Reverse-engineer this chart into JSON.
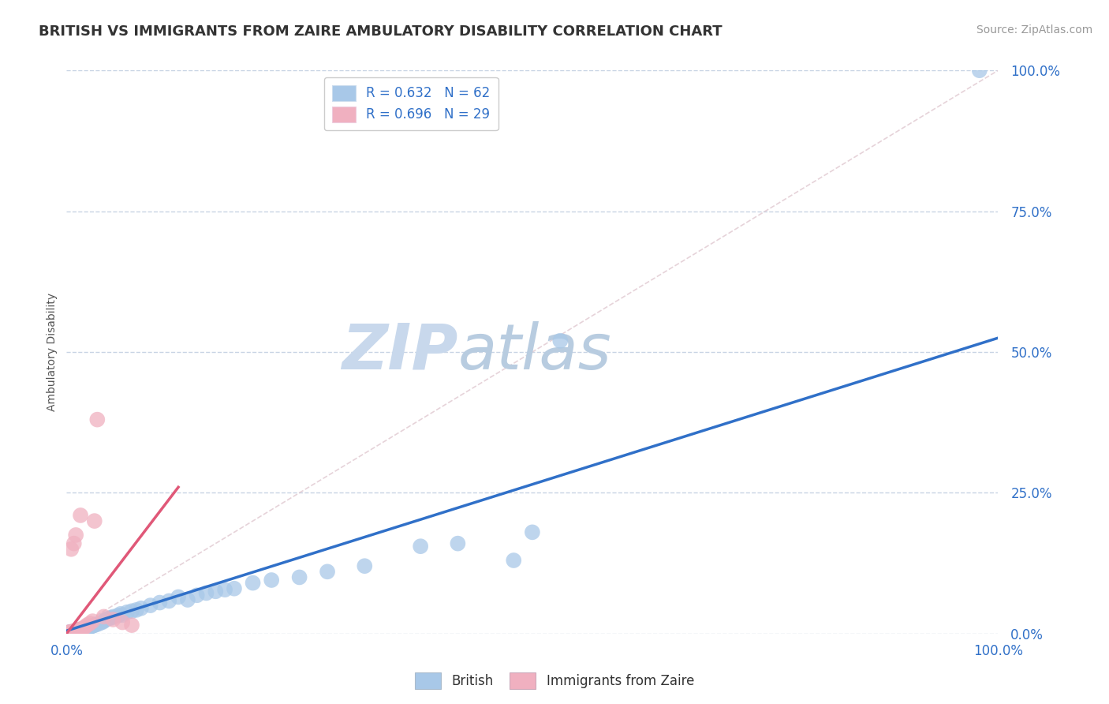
{
  "title": "BRITISH VS IMMIGRANTS FROM ZAIRE AMBULATORY DISABILITY CORRELATION CHART",
  "source": "Source: ZipAtlas.com",
  "ylabel": "Ambulatory Disability",
  "blue_R": 0.632,
  "blue_N": 62,
  "pink_R": 0.696,
  "pink_N": 29,
  "blue_color": "#a8c8e8",
  "pink_color": "#f0b0c0",
  "blue_line_color": "#3070c8",
  "pink_line_color": "#e05878",
  "blue_scatter": [
    [
      0.001,
      0.001
    ],
    [
      0.002,
      0.002
    ],
    [
      0.003,
      0.001
    ],
    [
      0.004,
      0.003
    ],
    [
      0.005,
      0.002
    ],
    [
      0.006,
      0.003
    ],
    [
      0.007,
      0.002
    ],
    [
      0.008,
      0.004
    ],
    [
      0.009,
      0.003
    ],
    [
      0.01,
      0.005
    ],
    [
      0.011,
      0.004
    ],
    [
      0.012,
      0.005
    ],
    [
      0.013,
      0.006
    ],
    [
      0.014,
      0.004
    ],
    [
      0.015,
      0.007
    ],
    [
      0.016,
      0.005
    ],
    [
      0.017,
      0.006
    ],
    [
      0.018,
      0.007
    ],
    [
      0.019,
      0.008
    ],
    [
      0.02,
      0.009
    ],
    [
      0.022,
      0.01
    ],
    [
      0.024,
      0.011
    ],
    [
      0.025,
      0.012
    ],
    [
      0.027,
      0.013
    ],
    [
      0.028,
      0.014
    ],
    [
      0.03,
      0.015
    ],
    [
      0.032,
      0.016
    ],
    [
      0.035,
      0.018
    ],
    [
      0.038,
      0.02
    ],
    [
      0.04,
      0.022
    ],
    [
      0.042,
      0.025
    ],
    [
      0.045,
      0.027
    ],
    [
      0.048,
      0.028
    ],
    [
      0.05,
      0.03
    ],
    [
      0.055,
      0.032
    ],
    [
      0.058,
      0.035
    ],
    [
      0.06,
      0.033
    ],
    [
      0.065,
      0.038
    ],
    [
      0.07,
      0.04
    ],
    [
      0.075,
      0.042
    ],
    [
      0.08,
      0.045
    ],
    [
      0.09,
      0.05
    ],
    [
      0.1,
      0.055
    ],
    [
      0.11,
      0.058
    ],
    [
      0.12,
      0.065
    ],
    [
      0.13,
      0.06
    ],
    [
      0.14,
      0.068
    ],
    [
      0.15,
      0.072
    ],
    [
      0.16,
      0.075
    ],
    [
      0.17,
      0.078
    ],
    [
      0.18,
      0.08
    ],
    [
      0.2,
      0.09
    ],
    [
      0.22,
      0.095
    ],
    [
      0.25,
      0.1
    ],
    [
      0.28,
      0.11
    ],
    [
      0.32,
      0.12
    ],
    [
      0.38,
      0.155
    ],
    [
      0.42,
      0.16
    ],
    [
      0.48,
      0.13
    ],
    [
      0.5,
      0.18
    ],
    [
      0.53,
      0.52
    ],
    [
      0.98,
      1.0
    ]
  ],
  "pink_scatter": [
    [
      0.001,
      0.001
    ],
    [
      0.002,
      0.002
    ],
    [
      0.003,
      0.001
    ],
    [
      0.004,
      0.003
    ],
    [
      0.005,
      0.002
    ],
    [
      0.006,
      0.003
    ],
    [
      0.007,
      0.004
    ],
    [
      0.008,
      0.003
    ],
    [
      0.009,
      0.005
    ],
    [
      0.01,
      0.004
    ],
    [
      0.011,
      0.006
    ],
    [
      0.012,
      0.005
    ],
    [
      0.013,
      0.007
    ],
    [
      0.015,
      0.008
    ],
    [
      0.018,
      0.01
    ],
    [
      0.02,
      0.012
    ],
    [
      0.022,
      0.015
    ],
    [
      0.025,
      0.018
    ],
    [
      0.028,
      0.022
    ],
    [
      0.03,
      0.2
    ],
    [
      0.033,
      0.38
    ],
    [
      0.01,
      0.175
    ],
    [
      0.015,
      0.21
    ],
    [
      0.005,
      0.15
    ],
    [
      0.008,
      0.16
    ],
    [
      0.04,
      0.03
    ],
    [
      0.05,
      0.025
    ],
    [
      0.06,
      0.02
    ],
    [
      0.07,
      0.015
    ]
  ],
  "blue_line_x": [
    0.0,
    1.0
  ],
  "blue_line_y": [
    0.005,
    0.525
  ],
  "pink_line_x": [
    0.0,
    0.12
  ],
  "pink_line_y": [
    0.0,
    0.26
  ],
  "ref_line_x": [
    0.0,
    1.0
  ],
  "ref_line_y": [
    0.0,
    1.0
  ],
  "ytick_labels": [
    "0.0%",
    "25.0%",
    "50.0%",
    "75.0%",
    "100.0%"
  ],
  "ytick_values": [
    0.0,
    0.25,
    0.5,
    0.75,
    1.0
  ],
  "xtick_labels": [
    "0.0%",
    "100.0%"
  ],
  "xtick_values": [
    0.0,
    1.0
  ],
  "background_color": "#ffffff",
  "grid_color": "#c8d4e4",
  "watermark_zip_color": "#c8d8ec",
  "watermark_atlas_color": "#b8cce0",
  "title_fontsize": 13,
  "axis_label_fontsize": 10,
  "tick_fontsize": 12,
  "legend_fontsize": 12,
  "source_fontsize": 10
}
